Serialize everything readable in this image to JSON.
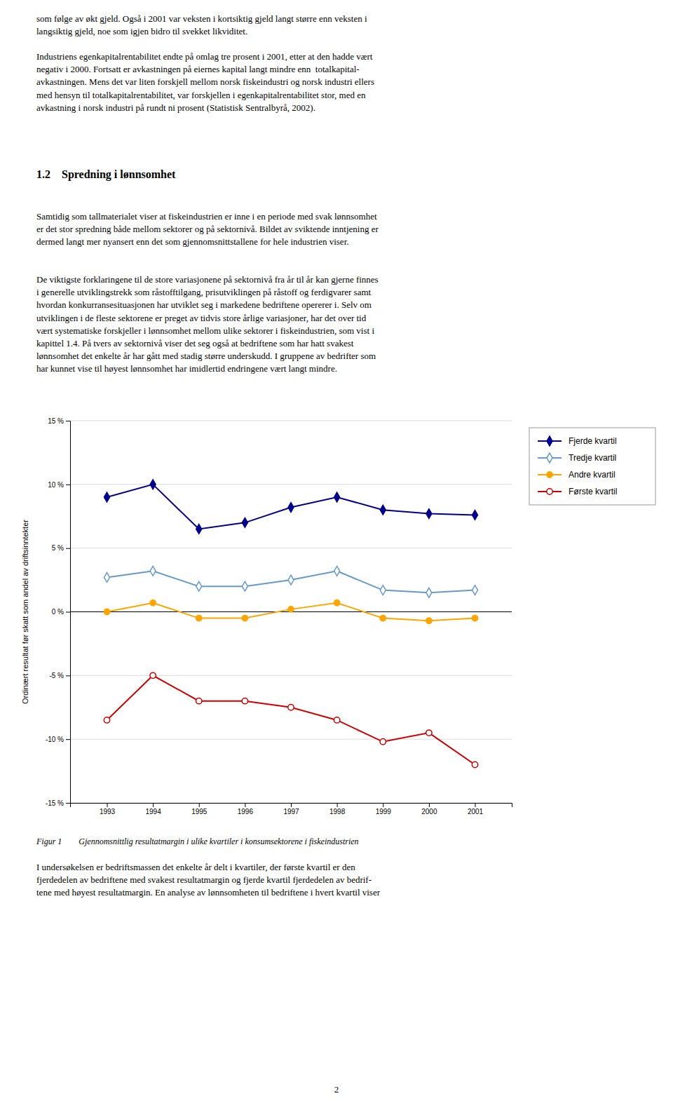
{
  "chart_data": {
    "type": "line",
    "title": "Figur 1        Gjennomsnittlig resultatmargin i ulike kvartiler i konsumsektorene i fiskeindustrien",
    "ylabel": "Ordinært resultat før skatt som andel av driftsinntekter",
    "x": [
      1993,
      1994,
      1995,
      1996,
      1997,
      1998,
      1999,
      2000,
      2001
    ],
    "xlim": [
      1992.2,
      2001.8
    ],
    "xticks": [
      1993,
      1994,
      1995,
      1996,
      1997,
      1998,
      1999,
      2000,
      2001
    ],
    "ylim": [
      -15,
      15
    ],
    "yticks": [
      {
        "value": -15,
        "label": "-15 %"
      },
      {
        "value": -10,
        "label": "-10 %"
      },
      {
        "value": -5,
        "label": "-5 %"
      },
      {
        "value": 0,
        "label": "0 %"
      },
      {
        "value": 5,
        "label": "5 %"
      },
      {
        "value": 10,
        "label": "10 %"
      },
      {
        "value": 15,
        "label": "15 %"
      }
    ],
    "grid": true,
    "legend": "upper right",
    "series": [
      {
        "name": "Fjerde kvartil",
        "color": "#00008B",
        "marker": "diamond",
        "values": [
          9.0,
          10.0,
          6.5,
          7.0,
          8.2,
          9.0,
          8.0,
          7.7,
          7.6
        ]
      },
      {
        "name": "Tredje kvartil",
        "color": "#6699CC",
        "marker": "diamond-open",
        "values": [
          2.7,
          3.2,
          2.0,
          2.0,
          2.5,
          3.2,
          1.7,
          1.5,
          1.7
        ]
      },
      {
        "name": "Andre kvartil",
        "color": "#FFA500",
        "marker": "circle",
        "values": [
          0.0,
          0.7,
          -0.5,
          -0.5,
          0.2,
          0.7,
          -0.5,
          -0.7,
          -0.5
        ]
      },
      {
        "name": "Første kvartil",
        "color": "#CC0000",
        "marker": "circle-open",
        "values": [
          -8.5,
          -5.0,
          -7.0,
          -7.0,
          -7.5,
          -8.5,
          -10.2,
          -9.5,
          -12.0
        ]
      }
    ]
  },
  "paragraphs_above": [
    "som følge av økt gjeld. Også i 2001 var veksten i kortsiktig gjeld langt større enn veksten i\nlangsiktig gjeld, noe som igjen bidro til svekket likviditet.",
    "Industriens egenkapitalrentabilitet endte på omlag tre prosent i 2001, etter at den hadde vært\nnegativ i 2000. Fortsatt er avkastningen på eiernes kapital langt mindre enn  totalkapital-\navkastningen. Mens det var liten forskjell mellom norsk fiskeindustri og norsk industri ellers\nmed hensyn til totalkapitalrentabilitet, var forskjellen i egenkapitalrentabilitet stor, med en\navkastning i norsk industri på rundt ni prosent (Statistisk Sentralbyrå, 2002)."
  ],
  "heading": "1.2 Spredning i lønnsomhet",
  "paragraphs_middle": [
    "Samtidig som tallmaterialet viser at fiskeindustrien er inne i en periode med svak lønnsomhet\ner det stor spredning både mellom sektorer og på sektornivå. Bildet av sviktende inntjening er\ndermed langt mer nyansert enn det som gjennomsnittstallene for hele industrien viser.",
    "De viktigste forklaringene til de store variasjonene på sektornivå fra år til år kan gjerne finnes\ni generelle utviklingstrekk som råstofftilgang, prisutviklingen på råstoff og ferdigvarer samt\nhvordan konkurransesituasjonen har utviklet seg i markedene bedriftene opererer i. Selv om\nutviklingen i de fleste sektorene er preget av tidvis store årlige variasjoner, har det over tid\nvært systematiske forskjeller i lønnsomhet mellom ulike sektorer i fiskeindustrien, som vist i\nkapittel 1.4. På tvers av sektornivå viser det seg også at bedriftene som har hatt svakest\nlønnsomhet det enkelte år har gått med stadig større underskudd. I gruppene av bedrifter som\nhar kunnet vise til høyest lønnsomhet har imidlertid endringene vært langt mindre."
  ],
  "paragraphs_below": [
    "I undersøkelsen er bedriftsmassen det enkelte år delt i kvartiler, der første kvartil er den\nfjerdedelen av bedriftene med svakest resultatmargin og fjerde kvartil fjerdedelen av bedrif-\ntene med høyest resultatmargin. En analyse av lønnsomheten til bedriftene i hvert kvartil viser"
  ],
  "page_number": "2"
}
